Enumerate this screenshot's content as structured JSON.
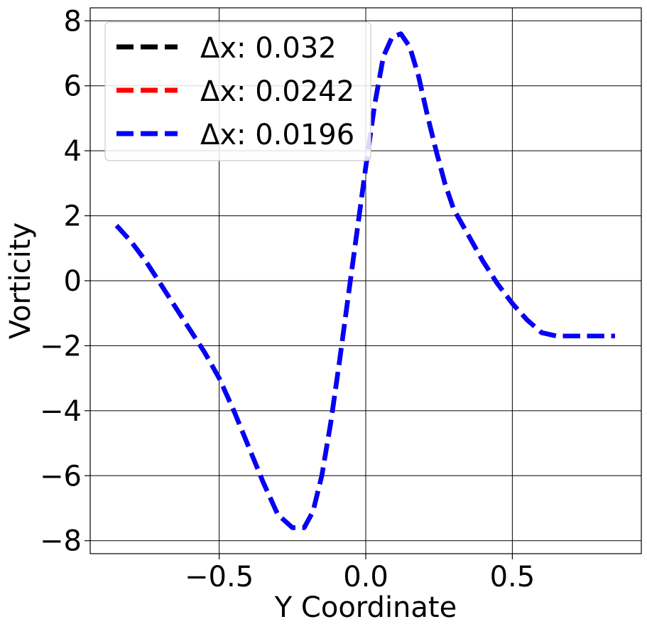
{
  "chart_data": {
    "type": "line",
    "title": "",
    "xlabel": "Y Coordinate",
    "ylabel": "Vorticity",
    "xlim": [
      -0.94,
      0.94
    ],
    "ylim": [
      -8.4,
      8.4
    ],
    "xticks": [
      -0.5,
      0.0,
      0.5
    ],
    "xtick_labels": [
      "−0.5",
      "0.0",
      "0.5"
    ],
    "yticks": [
      -8,
      -6,
      -4,
      -2,
      0,
      2,
      4,
      6,
      8
    ],
    "ytick_labels": [
      "−8",
      "−6",
      "−4",
      "−2",
      "0",
      "2",
      "4",
      "6",
      "8"
    ],
    "grid": true,
    "legend_position": "top-left",
    "series": [
      {
        "name": "Δx: 0.032",
        "color": "#000000",
        "style": "dashed",
        "x": [
          -0.85,
          -0.8,
          -0.75,
          -0.7,
          -0.65,
          -0.6,
          -0.55,
          -0.5,
          -0.45,
          -0.4,
          -0.35,
          -0.3,
          -0.25,
          -0.21,
          -0.18,
          -0.15,
          -0.12,
          -0.09,
          -0.06,
          -0.03,
          0.0,
          0.03,
          0.06,
          0.09,
          0.12,
          0.15,
          0.18,
          0.21,
          0.24,
          0.27,
          0.3,
          0.35,
          0.4,
          0.45,
          0.5,
          0.55,
          0.6,
          0.65,
          0.7,
          0.75,
          0.8,
          0.85
        ],
        "y": [
          1.7,
          1.2,
          0.6,
          -0.1,
          -0.8,
          -1.5,
          -2.2,
          -3.0,
          -4.0,
          -5.1,
          -6.2,
          -7.2,
          -7.6,
          -7.6,
          -7.1,
          -6.0,
          -4.4,
          -2.5,
          -0.5,
          1.5,
          3.5,
          5.4,
          6.9,
          7.5,
          7.6,
          7.2,
          6.3,
          5.1,
          4.0,
          3.0,
          2.2,
          1.4,
          0.6,
          -0.1,
          -0.7,
          -1.2,
          -1.6,
          -1.7,
          -1.7,
          -1.7,
          -1.7,
          -1.7
        ]
      },
      {
        "name": "Δx: 0.0242",
        "color": "#ff0000",
        "style": "dashed",
        "x": [
          -0.85,
          -0.8,
          -0.75,
          -0.7,
          -0.65,
          -0.6,
          -0.55,
          -0.5,
          -0.45,
          -0.4,
          -0.35,
          -0.3,
          -0.25,
          -0.21,
          -0.18,
          -0.15,
          -0.12,
          -0.09,
          -0.06,
          -0.03,
          0.0,
          0.03,
          0.06,
          0.09,
          0.12,
          0.15,
          0.18,
          0.21,
          0.24,
          0.27,
          0.3,
          0.35,
          0.4,
          0.45,
          0.5,
          0.55,
          0.6,
          0.65,
          0.7,
          0.75,
          0.8,
          0.85
        ],
        "y": [
          1.7,
          1.2,
          0.6,
          -0.1,
          -0.8,
          -1.5,
          -2.2,
          -3.0,
          -4.0,
          -5.1,
          -6.2,
          -7.2,
          -7.6,
          -7.6,
          -7.1,
          -6.0,
          -4.4,
          -2.5,
          -0.5,
          1.5,
          3.5,
          5.4,
          6.9,
          7.5,
          7.6,
          7.2,
          6.3,
          5.1,
          4.0,
          3.0,
          2.2,
          1.4,
          0.6,
          -0.1,
          -0.7,
          -1.2,
          -1.6,
          -1.7,
          -1.7,
          -1.7,
          -1.7,
          -1.7
        ]
      },
      {
        "name": "Δx: 0.0196",
        "color": "#0000ff",
        "style": "dashed",
        "x": [
          -0.85,
          -0.8,
          -0.75,
          -0.7,
          -0.65,
          -0.6,
          -0.55,
          -0.5,
          -0.45,
          -0.4,
          -0.35,
          -0.3,
          -0.25,
          -0.21,
          -0.18,
          -0.15,
          -0.12,
          -0.09,
          -0.06,
          -0.03,
          0.0,
          0.03,
          0.06,
          0.09,
          0.12,
          0.15,
          0.18,
          0.21,
          0.24,
          0.27,
          0.3,
          0.35,
          0.4,
          0.45,
          0.5,
          0.55,
          0.6,
          0.65,
          0.7,
          0.75,
          0.8,
          0.85
        ],
        "y": [
          1.7,
          1.2,
          0.6,
          -0.1,
          -0.8,
          -1.5,
          -2.2,
          -3.0,
          -4.0,
          -5.1,
          -6.2,
          -7.2,
          -7.6,
          -7.6,
          -7.1,
          -6.0,
          -4.4,
          -2.5,
          -0.5,
          1.5,
          3.5,
          5.4,
          6.9,
          7.5,
          7.6,
          7.2,
          6.3,
          5.1,
          4.0,
          3.0,
          2.2,
          1.4,
          0.6,
          -0.1,
          -0.7,
          -1.2,
          -1.6,
          -1.7,
          -1.7,
          -1.7,
          -1.7,
          -1.7
        ]
      }
    ]
  }
}
